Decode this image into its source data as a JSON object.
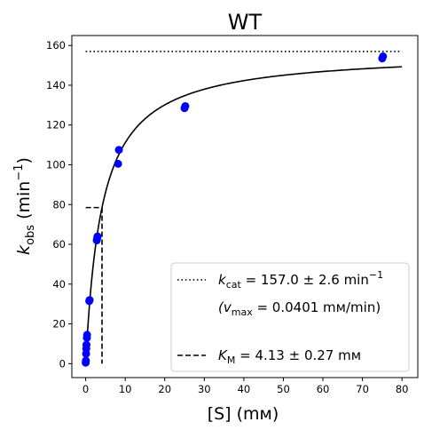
{
  "chart_data": {
    "type": "scatter",
    "title": "WT",
    "xlabel": "[S] (mм)",
    "ylabel": {
      "main": "k",
      "sub": "obs",
      "unit_open": " (min",
      "sup": "−1",
      "unit_close": ")"
    },
    "xlim": [
      -3.5,
      84
    ],
    "ylim": [
      -7,
      165
    ],
    "xticks": [
      0,
      10,
      20,
      30,
      40,
      50,
      60,
      70,
      80
    ],
    "yticks": [
      0,
      20,
      40,
      60,
      80,
      100,
      120,
      140,
      160
    ],
    "grid": false,
    "points": [
      {
        "x": 0.0,
        "y": 0.5
      },
      {
        "x": 0.05,
        "y": 1.5
      },
      {
        "x": 0.1,
        "y": 5.0
      },
      {
        "x": 0.15,
        "y": 7.5
      },
      {
        "x": 0.2,
        "y": 9.5
      },
      {
        "x": 0.3,
        "y": 13.0
      },
      {
        "x": 0.35,
        "y": 14.5
      },
      {
        "x": 0.9,
        "y": 31.5
      },
      {
        "x": 1.0,
        "y": 32.0
      },
      {
        "x": 2.8,
        "y": 62.0
      },
      {
        "x": 2.9,
        "y": 63.0
      },
      {
        "x": 3.0,
        "y": 64.0
      },
      {
        "x": 8.2,
        "y": 100.5
      },
      {
        "x": 8.4,
        "y": 107.5
      },
      {
        "x": 25.0,
        "y": 128.5
      },
      {
        "x": 25.2,
        "y": 129.5
      },
      {
        "x": 75.0,
        "y": 153.5
      },
      {
        "x": 75.2,
        "y": 154.5
      }
    ],
    "marker_color": "#0000ff",
    "fit": {
      "kcat": 157.0,
      "km": 4.13,
      "x_range": [
        0,
        80
      ]
    },
    "kcat_line": {
      "y": 157.0,
      "x_range": [
        0,
        80
      ]
    },
    "km_line": {
      "x": 4.13,
      "y": 78.5
    },
    "legend": {
      "placement": "lower-right",
      "kcat_entry": {
        "symbol": "k",
        "sub": "cat",
        "text": " = 157.0 ± 2.6 min",
        "sup": "−1"
      },
      "vmax_entry": {
        "open": "(v",
        "sub": "max",
        "text": " = 0.0401 mм/min)"
      },
      "km_entry": {
        "symbol": "K",
        "sub": "M",
        "text": " = 4.13 ± 0.27 mм"
      }
    }
  }
}
